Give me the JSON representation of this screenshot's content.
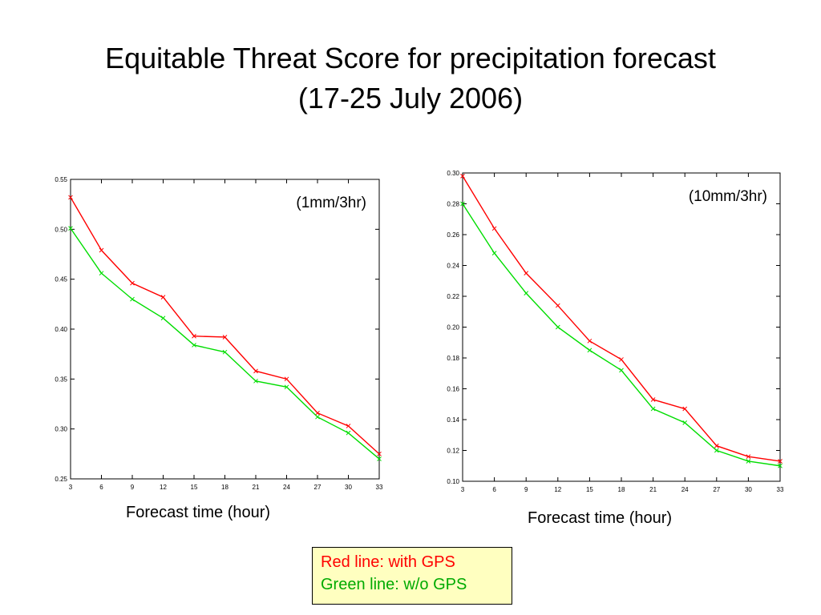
{
  "title_line1": "Equitable Threat Score for precipitation forecast",
  "title_line2": "(17-25 July 2006)",
  "legend": {
    "red_label": "Red line: with GPS",
    "green_label": "Green line: w/o GPS",
    "red_color": "#ff0000",
    "green_color": "#00dd00",
    "background": "#ffffc0"
  },
  "chart_data": [
    {
      "type": "line",
      "annotation": "(1mm/3hr)",
      "xlabel": "Forecast time (hour)",
      "ylabel": "",
      "x": [
        3,
        6,
        9,
        12,
        15,
        18,
        21,
        24,
        27,
        30,
        33
      ],
      "xlim": [
        3,
        33
      ],
      "ylim": [
        0.25,
        0.55
      ],
      "yticks": [
        "0.25",
        "0.30",
        "0.35",
        "0.40",
        "0.45",
        "0.50",
        "0.55"
      ],
      "series": [
        {
          "color": "#ff0000",
          "values": [
            0.532,
            0.479,
            0.446,
            0.432,
            0.393,
            0.392,
            0.358,
            0.35,
            0.316,
            0.303,
            0.275
          ]
        },
        {
          "color": "#00dd00",
          "values": [
            0.501,
            0.456,
            0.43,
            0.411,
            0.384,
            0.377,
            0.348,
            0.342,
            0.312,
            0.296,
            0.27
          ]
        }
      ]
    },
    {
      "type": "line",
      "annotation": "(10mm/3hr)",
      "xlabel": "Forecast time (hour)",
      "ylabel": "",
      "x": [
        3,
        6,
        9,
        12,
        15,
        18,
        21,
        24,
        27,
        30,
        33
      ],
      "xlim": [
        3,
        33
      ],
      "ylim": [
        0.1,
        0.3
      ],
      "yticks": [
        "0.10",
        "0.12",
        "0.14",
        "0.16",
        "0.18",
        "0.20",
        "0.22",
        "0.24",
        "0.26",
        "0.28",
        "0.30"
      ],
      "series": [
        {
          "color": "#ff0000",
          "values": [
            0.298,
            0.264,
            0.235,
            0.214,
            0.191,
            0.179,
            0.153,
            0.147,
            0.123,
            0.116,
            0.113
          ]
        },
        {
          "color": "#00dd00",
          "values": [
            0.28,
            0.248,
            0.222,
            0.2,
            0.185,
            0.172,
            0.147,
            0.138,
            0.12,
            0.113,
            0.11
          ]
        }
      ]
    }
  ]
}
